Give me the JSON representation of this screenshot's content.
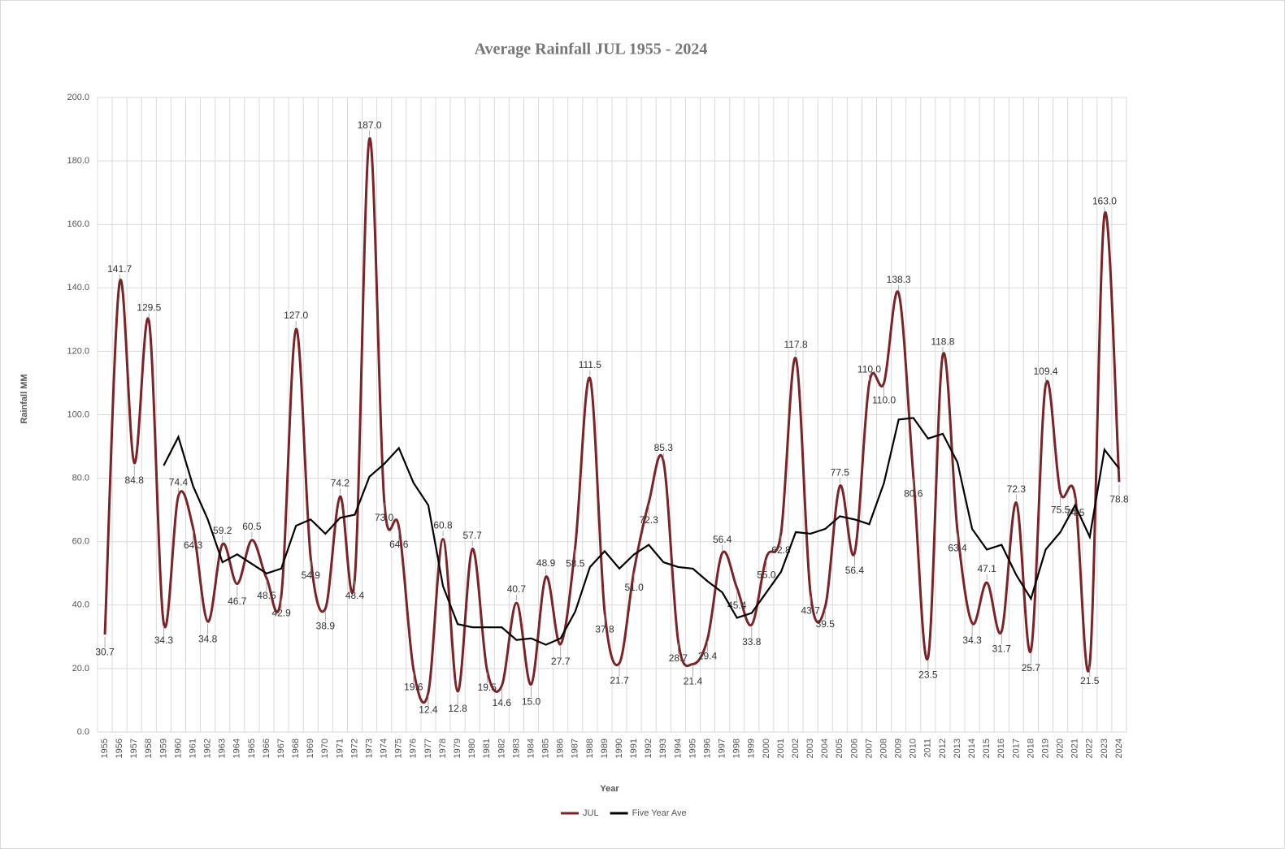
{
  "chart_data": {
    "type": "line",
    "title": "Average Rainfall JUL 1955 - 2024",
    "x_label": "Year",
    "y_label": "Rainfall MM",
    "categories": [
      "1955",
      "1956",
      "1957",
      "1958",
      "1959",
      "1960",
      "1961",
      "1962",
      "1963",
      "1964",
      "1965",
      "1966",
      "1967",
      "1968",
      "1969",
      "1970",
      "1971",
      "1972",
      "1973",
      "1974",
      "1975",
      "1976",
      "1977",
      "1978",
      "1979",
      "1980",
      "1981",
      "1982",
      "1983",
      "1984",
      "1985",
      "1986",
      "1987",
      "1988",
      "1989",
      "1990",
      "1991",
      "1992",
      "1993",
      "1994",
      "1995",
      "1996",
      "1997",
      "1998",
      "1999",
      "2000",
      "2001",
      "2002",
      "2003",
      "2004",
      "2005",
      "2006",
      "2007",
      "2008",
      "2009",
      "2010",
      "2011",
      "2012",
      "2013",
      "2014",
      "2015",
      "2016",
      "2017",
      "2018",
      "2019",
      "2020",
      "2021",
      "2022",
      "2023",
      "2024"
    ],
    "series": [
      {
        "name": "JUL",
        "color": "#7b2326",
        "smooth": true,
        "values": [
          30.7,
          141.7,
          84.8,
          129.5,
          34.3,
          74.4,
          64.3,
          34.8,
          59.2,
          46.7,
          60.5,
          48.5,
          42.9,
          127.0,
          54.9,
          38.9,
          74.2,
          48.4,
          187.0,
          73.0,
          64.6,
          19.6,
          12.4,
          60.8,
          12.8,
          57.7,
          19.5,
          14.6,
          40.7,
          15.0,
          48.9,
          27.7,
          58.5,
          111.5,
          37.8,
          21.7,
          51.0,
          72.3,
          85.3,
          28.7,
          21.4,
          29.4,
          56.4,
          45.4,
          33.8,
          55.0,
          62.8,
          117.8,
          43.7,
          39.5,
          77.5,
          56.4,
          110.0,
          110.0,
          138.3,
          80.6,
          23.5,
          118.8,
          63.4,
          34.3,
          47.1,
          31.7,
          72.3,
          25.7,
          109.4,
          75.5,
          74.5,
          21.5,
          163.0,
          78.8
        ],
        "value_labels": [
          "30.7",
          "141.7",
          "84.8",
          "129.5",
          "34.3",
          "74.4",
          "64.3",
          "34.8",
          "59.2",
          "46.7",
          "60.5",
          "48.5",
          "42.9",
          "127.0",
          "54.9",
          "38.9",
          "74.2",
          "48.4",
          "187.0",
          "73.0",
          "64.6",
          "19.6",
          "12.4",
          "60.8",
          "12.8",
          "57.7",
          "19.5",
          "14.6",
          "40.7",
          "15.0",
          "48.9",
          "27.7",
          "58.5",
          "111.5",
          "37.8",
          "21.7",
          "51.0",
          "72.3",
          "85.3",
          "28.7",
          "21.4",
          "29.4",
          "56.4",
          "45.4",
          "33.8",
          "55.0",
          "62.8",
          "117.8",
          "43.7",
          "39.5",
          "77.5",
          "56.4",
          "110.0",
          "110.0",
          "138.3",
          "80.6",
          "23.5",
          "118.8",
          "63.4",
          "34.3",
          "47.1",
          "31.7",
          "72.3",
          "25.7",
          "109.4",
          "75.5",
          "74.5",
          "21.5",
          "163.0",
          "78.8"
        ]
      },
      {
        "name": "Five Year Ave",
        "color": "#000000",
        "smooth": false,
        "values": [
          null,
          null,
          null,
          null,
          84,
          93,
          77.5,
          67,
          53.5,
          56,
          53,
          50,
          51.5,
          65,
          67,
          62.5,
          67.5,
          68.5,
          80.5,
          84.5,
          89.5,
          78.5,
          71.5,
          46,
          34,
          33,
          33,
          33,
          29,
          29.5,
          27.5,
          29.5,
          38,
          52,
          57,
          51.5,
          56,
          59,
          53.5,
          52,
          51.5,
          47.5,
          44,
          36,
          37.5,
          44,
          50.5,
          63,
          62.5,
          64,
          68,
          67,
          65.5,
          78.5,
          98.5,
          99,
          92.5,
          94,
          85,
          64,
          57.5,
          59,
          49.5,
          42,
          57.5,
          63,
          71.5,
          61.5,
          89,
          83
        ]
      }
    ],
    "ylim": [
      0,
      200
    ],
    "yticks": [
      {
        "value": 0,
        "label": "0.0"
      },
      {
        "value": 20,
        "label": "20.0"
      },
      {
        "value": 40,
        "label": "40.0"
      },
      {
        "value": 60,
        "label": "60.0"
      },
      {
        "value": 80,
        "label": "80.0"
      },
      {
        "value": 100,
        "label": "100.0"
      },
      {
        "value": 120,
        "label": "120.0"
      },
      {
        "value": 140,
        "label": "140.0"
      },
      {
        "value": 160,
        "label": "160.0"
      },
      {
        "value": 180,
        "label": "180.0"
      },
      {
        "value": 200,
        "label": "200.0"
      }
    ],
    "grid": true,
    "legend": "bottom"
  }
}
